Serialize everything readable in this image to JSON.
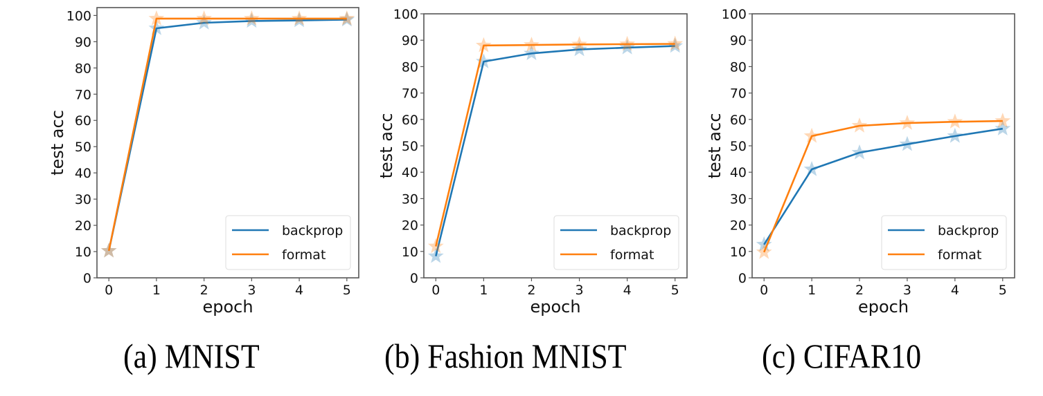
{
  "figure": {
    "colors": {
      "backprop": "#1f77b4",
      "format": "#ff7f0e",
      "frame": "#555555",
      "legend_border": "#dddddd"
    },
    "marker": "star-icon"
  },
  "chart_data": [
    {
      "type": "line",
      "caption": "(a) MNIST",
      "title": "",
      "xlabel": "epoch",
      "ylabel": "test acc",
      "x": [
        0,
        1,
        2,
        3,
        4,
        5
      ],
      "xticks": [
        "0",
        "1",
        "2",
        "3",
        "4",
        "5"
      ],
      "yticks": [
        "0",
        "10",
        "20",
        "30",
        "40",
        "50",
        "60",
        "70",
        "80",
        "90",
        "100"
      ],
      "xlim": [
        -0.25,
        5.25
      ],
      "ylim": [
        0,
        103
      ],
      "grid": false,
      "legend_position": "lower right",
      "series": [
        {
          "name": "backprop",
          "values": [
            10.3,
            95.1,
            97.2,
            97.9,
            98.1,
            98.4
          ]
        },
        {
          "name": "format",
          "values": [
            10.3,
            98.8,
            98.8,
            98.8,
            98.8,
            98.8
          ]
        }
      ]
    },
    {
      "type": "line",
      "caption": "(b) Fashion MNIST",
      "title": "",
      "xlabel": "epoch",
      "ylabel": "test acc",
      "x": [
        0,
        1,
        2,
        3,
        4,
        5
      ],
      "xticks": [
        "0",
        "1",
        "2",
        "3",
        "4",
        "5"
      ],
      "yticks": [
        "0",
        "10",
        "20",
        "30",
        "40",
        "50",
        "60",
        "70",
        "80",
        "90",
        "100"
      ],
      "xlim": [
        -0.25,
        5.25
      ],
      "ylim": [
        0,
        100
      ],
      "grid": false,
      "legend_position": "lower right",
      "series": [
        {
          "name": "backprop",
          "values": [
            8.2,
            81.9,
            85.0,
            86.5,
            87.2,
            87.8
          ]
        },
        {
          "name": "format",
          "values": [
            11.9,
            88.0,
            88.2,
            88.4,
            88.5,
            88.6
          ]
        }
      ]
    },
    {
      "type": "line",
      "caption": "(c) CIFAR10",
      "title": "",
      "xlabel": "epoch",
      "ylabel": "test acc",
      "x": [
        0,
        1,
        2,
        3,
        4,
        5
      ],
      "xticks": [
        "0",
        "1",
        "2",
        "3",
        "4",
        "5"
      ],
      "yticks": [
        "0",
        "10",
        "20",
        "30",
        "40",
        "50",
        "60",
        "70",
        "80",
        "90",
        "100"
      ],
      "xlim": [
        -0.25,
        5.25
      ],
      "ylim": [
        0,
        100
      ],
      "grid": false,
      "legend_position": "lower right",
      "series": [
        {
          "name": "backprop",
          "values": [
            12.6,
            41.1,
            47.4,
            50.6,
            53.7,
            56.5
          ]
        },
        {
          "name": "format",
          "values": [
            9.7,
            53.7,
            57.6,
            58.6,
            59.1,
            59.4
          ]
        }
      ]
    }
  ],
  "captions": [
    "(a) MNIST",
    "(b) Fashion MNIST",
    "(c) CIFAR10"
  ]
}
